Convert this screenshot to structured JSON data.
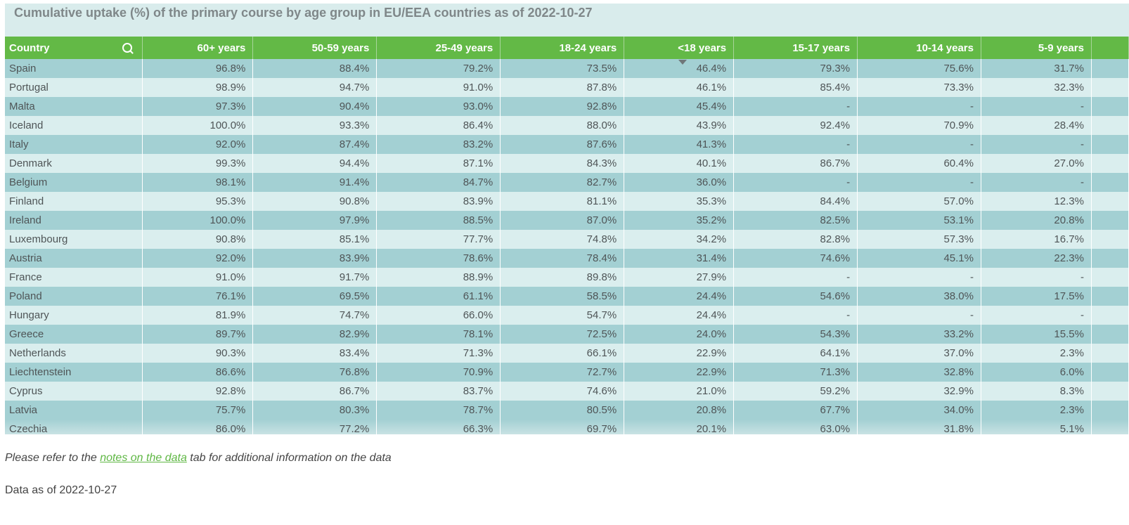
{
  "title": "Cumulative uptake (%) of the primary course by age group in EU/EEA countries as of 2022-10-27",
  "columns": [
    "Country",
    "60+ years",
    "50-59 years",
    "25-49 years",
    "18-24 years",
    "<18 years",
    "15-17 years",
    "10-14 years",
    "5-9 years"
  ],
  "rows": [
    [
      "Spain",
      "96.8%",
      "88.4%",
      "79.2%",
      "73.5%",
      "46.4%",
      "79.3%",
      "75.6%",
      "31.7%"
    ],
    [
      "Portugal",
      "98.9%",
      "94.7%",
      "91.0%",
      "87.8%",
      "46.1%",
      "85.4%",
      "73.3%",
      "32.3%"
    ],
    [
      "Malta",
      "97.3%",
      "90.4%",
      "93.0%",
      "92.8%",
      "45.4%",
      "-",
      "-",
      "-"
    ],
    [
      "Iceland",
      "100.0%",
      "93.3%",
      "86.4%",
      "88.0%",
      "43.9%",
      "92.4%",
      "70.9%",
      "28.4%"
    ],
    [
      "Italy",
      "92.0%",
      "87.4%",
      "83.2%",
      "87.6%",
      "41.3%",
      "-",
      "-",
      "-"
    ],
    [
      "Denmark",
      "99.3%",
      "94.4%",
      "87.1%",
      "84.3%",
      "40.1%",
      "86.7%",
      "60.4%",
      "27.0%"
    ],
    [
      "Belgium",
      "98.1%",
      "91.4%",
      "84.7%",
      "82.7%",
      "36.0%",
      "-",
      "-",
      "-"
    ],
    [
      "Finland",
      "95.3%",
      "90.8%",
      "83.9%",
      "81.1%",
      "35.3%",
      "84.4%",
      "57.0%",
      "12.3%"
    ],
    [
      "Ireland",
      "100.0%",
      "97.9%",
      "88.5%",
      "87.0%",
      "35.2%",
      "82.5%",
      "53.1%",
      "20.8%"
    ],
    [
      "Luxembourg",
      "90.8%",
      "85.1%",
      "77.7%",
      "74.8%",
      "34.2%",
      "82.8%",
      "57.3%",
      "16.7%"
    ],
    [
      "Austria",
      "92.0%",
      "83.9%",
      "78.6%",
      "78.4%",
      "31.4%",
      "74.6%",
      "45.1%",
      "22.3%"
    ],
    [
      "France",
      "91.0%",
      "91.7%",
      "88.9%",
      "89.8%",
      "27.9%",
      "-",
      "-",
      "-"
    ],
    [
      "Poland",
      "76.1%",
      "69.5%",
      "61.1%",
      "58.5%",
      "24.4%",
      "54.6%",
      "38.0%",
      "17.5%"
    ],
    [
      "Hungary",
      "81.9%",
      "74.7%",
      "66.0%",
      "54.7%",
      "24.4%",
      "-",
      "-",
      "-"
    ],
    [
      "Greece",
      "89.7%",
      "82.9%",
      "78.1%",
      "72.5%",
      "24.0%",
      "54.3%",
      "33.2%",
      "15.5%"
    ],
    [
      "Netherlands",
      "90.3%",
      "83.4%",
      "71.3%",
      "66.1%",
      "22.9%",
      "64.1%",
      "37.0%",
      "2.3%"
    ],
    [
      "Liechtenstein",
      "86.6%",
      "76.8%",
      "70.9%",
      "72.7%",
      "22.9%",
      "71.3%",
      "32.8%",
      "6.0%"
    ],
    [
      "Cyprus",
      "92.8%",
      "86.7%",
      "83.7%",
      "74.6%",
      "21.0%",
      "59.2%",
      "32.9%",
      "8.3%"
    ],
    [
      "Latvia",
      "75.7%",
      "80.3%",
      "78.7%",
      "80.5%",
      "20.8%",
      "67.7%",
      "34.0%",
      "2.3%"
    ],
    [
      "Czechia",
      "86.0%",
      "77.2%",
      "66.3%",
      "69.7%",
      "20.1%",
      "63.0%",
      "31.8%",
      "5.1%"
    ]
  ],
  "note": {
    "before": "Please refer to the ",
    "link": "notes on the data",
    "after": " tab for additional information on the data"
  },
  "as_of": "Data as of 2022-10-27",
  "colors": {
    "header": "#63b946",
    "row_dark": "#a3d0d3",
    "row_light": "#daeeee",
    "link": "#5fb744"
  }
}
